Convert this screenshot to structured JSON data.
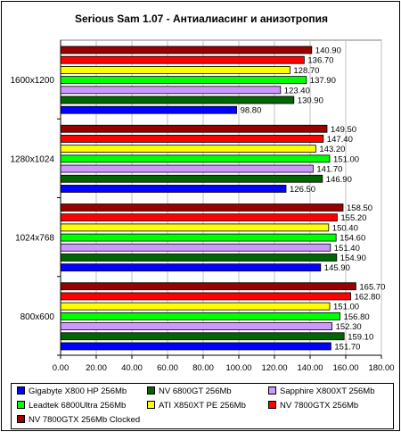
{
  "chart_data": {
    "type": "bar",
    "orientation": "horizontal",
    "title": "Serious Sam 1.07 - Антиалиасинг и анизотропия",
    "xlabel": "",
    "ylabel": "",
    "xlim": [
      0,
      180
    ],
    "xticks": [
      "0.00",
      "20.00",
      "40.00",
      "60.00",
      "80.00",
      "100.00",
      "120.00",
      "140.00",
      "160.00",
      "180.00"
    ],
    "grid": true,
    "legend_position": "bottom",
    "categories": [
      "1600x1200",
      "1280x1024",
      "1024x768",
      "800x600"
    ],
    "series": [
      {
        "name": "Gigabyte X800 HP 256Mb",
        "color": "#0000ff",
        "values": [
          98.8,
          126.5,
          145.9,
          151.7
        ],
        "labels": [
          "98.80",
          "126.50",
          "145.90",
          "151.70"
        ]
      },
      {
        "name": "NV 6800GT 256Mb",
        "color": "#006600",
        "values": [
          130.9,
          146.9,
          154.9,
          159.1
        ],
        "labels": [
          "130.90",
          "146.90",
          "154.90",
          "159.10"
        ]
      },
      {
        "name": "Sapphire X800XT 256Mb",
        "color": "#cc99ff",
        "values": [
          123.4,
          141.7,
          151.4,
          152.3
        ],
        "labels": [
          "123.40",
          "141.70",
          "151.40",
          "152.30"
        ]
      },
      {
        "name": "Leadtek 6800Ultra 256Mb",
        "color": "#00ff00",
        "values": [
          137.9,
          151.0,
          154.6,
          156.8
        ],
        "labels": [
          "137.90",
          "151.00",
          "154.60",
          "156.80"
        ]
      },
      {
        "name": "ATI X850XT PE 256Mb",
        "color": "#ffff00",
        "values": [
          128.7,
          143.2,
          150.4,
          151.0
        ],
        "labels": [
          "128.70",
          "143.20",
          "150.40",
          "151.00"
        ]
      },
      {
        "name": "NV 7800GTX 256Mb",
        "color": "#ff0000",
        "values": [
          136.7,
          147.4,
          155.2,
          162.8
        ],
        "labels": [
          "136.70",
          "147.40",
          "155.20",
          "162.80"
        ]
      },
      {
        "name": "NV 7800GTX 256Mb Clocked",
        "color": "#990000",
        "values": [
          140.9,
          149.5,
          158.5,
          165.7
        ],
        "labels": [
          "140.90",
          "149.50",
          "158.50",
          "165.70"
        ]
      }
    ]
  }
}
